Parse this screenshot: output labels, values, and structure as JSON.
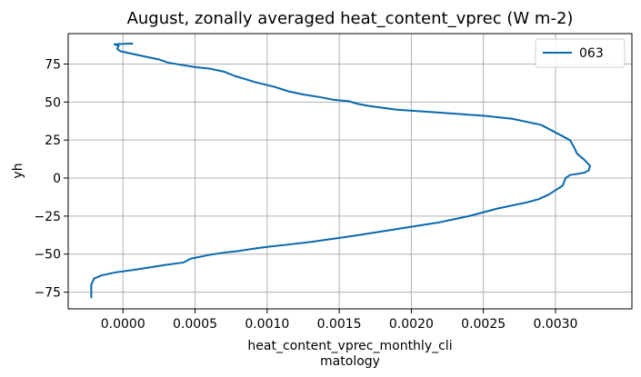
{
  "chart_data": {
    "type": "line",
    "title": "August, zonally averaged heat_content_vprec (W m-2)",
    "xlabel_lines": [
      "heat_content_vprec_monthly_cli",
      "matology"
    ],
    "ylabel": "yh",
    "xlim": [
      -0.00038,
      0.00353
    ],
    "ylim": [
      -86,
      95
    ],
    "xticks": [
      0.0,
      0.0005,
      0.001,
      0.0015,
      0.002,
      0.0025,
      0.003
    ],
    "xtick_labels": [
      "0.0000",
      "0.0005",
      "0.0010",
      "0.0015",
      "0.0020",
      "0.0025",
      "0.0030"
    ],
    "yticks": [
      -75,
      -50,
      -25,
      0,
      25,
      50,
      75
    ],
    "ytick_labels": [
      "−75",
      "−50",
      "−25",
      "0",
      "25",
      "50",
      "75"
    ],
    "grid": true,
    "legend_position": "top-right",
    "series": [
      {
        "name": "063",
        "color": "#0868ac",
        "points": [
          [
            -0.00022,
            -79
          ],
          [
            -0.00022,
            -70
          ],
          [
            -0.0002,
            -66
          ],
          [
            -0.00015,
            -64
          ],
          [
            -5e-05,
            -62
          ],
          [
            0.0001,
            -60
          ],
          [
            0.0002,
            -58.5
          ],
          [
            0.0003,
            -57
          ],
          [
            0.00042,
            -55.5
          ],
          [
            0.00047,
            -53
          ],
          [
            0.0006,
            -50.5
          ],
          [
            0.0007,
            -49
          ],
          [
            0.0008,
            -48
          ],
          [
            0.0009,
            -46.5
          ],
          [
            0.001,
            -45.2
          ],
          [
            0.00112,
            -44
          ],
          [
            0.0013,
            -42
          ],
          [
            0.00145,
            -40
          ],
          [
            0.0016,
            -38
          ],
          [
            0.0018,
            -35
          ],
          [
            0.002,
            -32
          ],
          [
            0.0022,
            -29
          ],
          [
            0.0024,
            -25
          ],
          [
            0.0026,
            -20
          ],
          [
            0.0028,
            -16
          ],
          [
            0.00288,
            -14
          ],
          [
            0.00295,
            -11
          ],
          [
            0.003,
            -8
          ],
          [
            0.00305,
            -5
          ],
          [
            0.00307,
            0
          ],
          [
            0.0031,
            2
          ],
          [
            0.0032,
            3.5
          ],
          [
            0.00323,
            5
          ],
          [
            0.00324,
            8
          ],
          [
            0.0032,
            12
          ],
          [
            0.00315,
            16
          ],
          [
            0.00313,
            20
          ],
          [
            0.0031,
            25
          ],
          [
            0.003,
            30
          ],
          [
            0.0029,
            35
          ],
          [
            0.0027,
            39
          ],
          [
            0.0025,
            41
          ],
          [
            0.0022,
            43
          ],
          [
            0.0019,
            45
          ],
          [
            0.0017,
            47.5
          ],
          [
            0.00162,
            49
          ],
          [
            0.00157,
            50.5
          ],
          [
            0.00146,
            51.5
          ],
          [
            0.00138,
            53
          ],
          [
            0.00125,
            55
          ],
          [
            0.00115,
            57
          ],
          [
            0.00105,
            60
          ],
          [
            0.00092,
            63
          ],
          [
            0.00085,
            65
          ],
          [
            0.00078,
            67
          ],
          [
            0.0007,
            70
          ],
          [
            0.0006,
            72
          ],
          [
            0.0005,
            73
          ],
          [
            0.0004,
            74.5
          ],
          [
            0.00031,
            76
          ],
          [
            0.00025,
            78
          ],
          [
            0.00015,
            80
          ],
          [
            5e-05,
            82
          ],
          [
            -2e-05,
            83.5
          ],
          [
            -4e-05,
            85
          ],
          [
            -3e-05,
            87
          ],
          [
            -6e-05,
            88
          ],
          [
            7e-05,
            88.5
          ]
        ]
      }
    ]
  }
}
